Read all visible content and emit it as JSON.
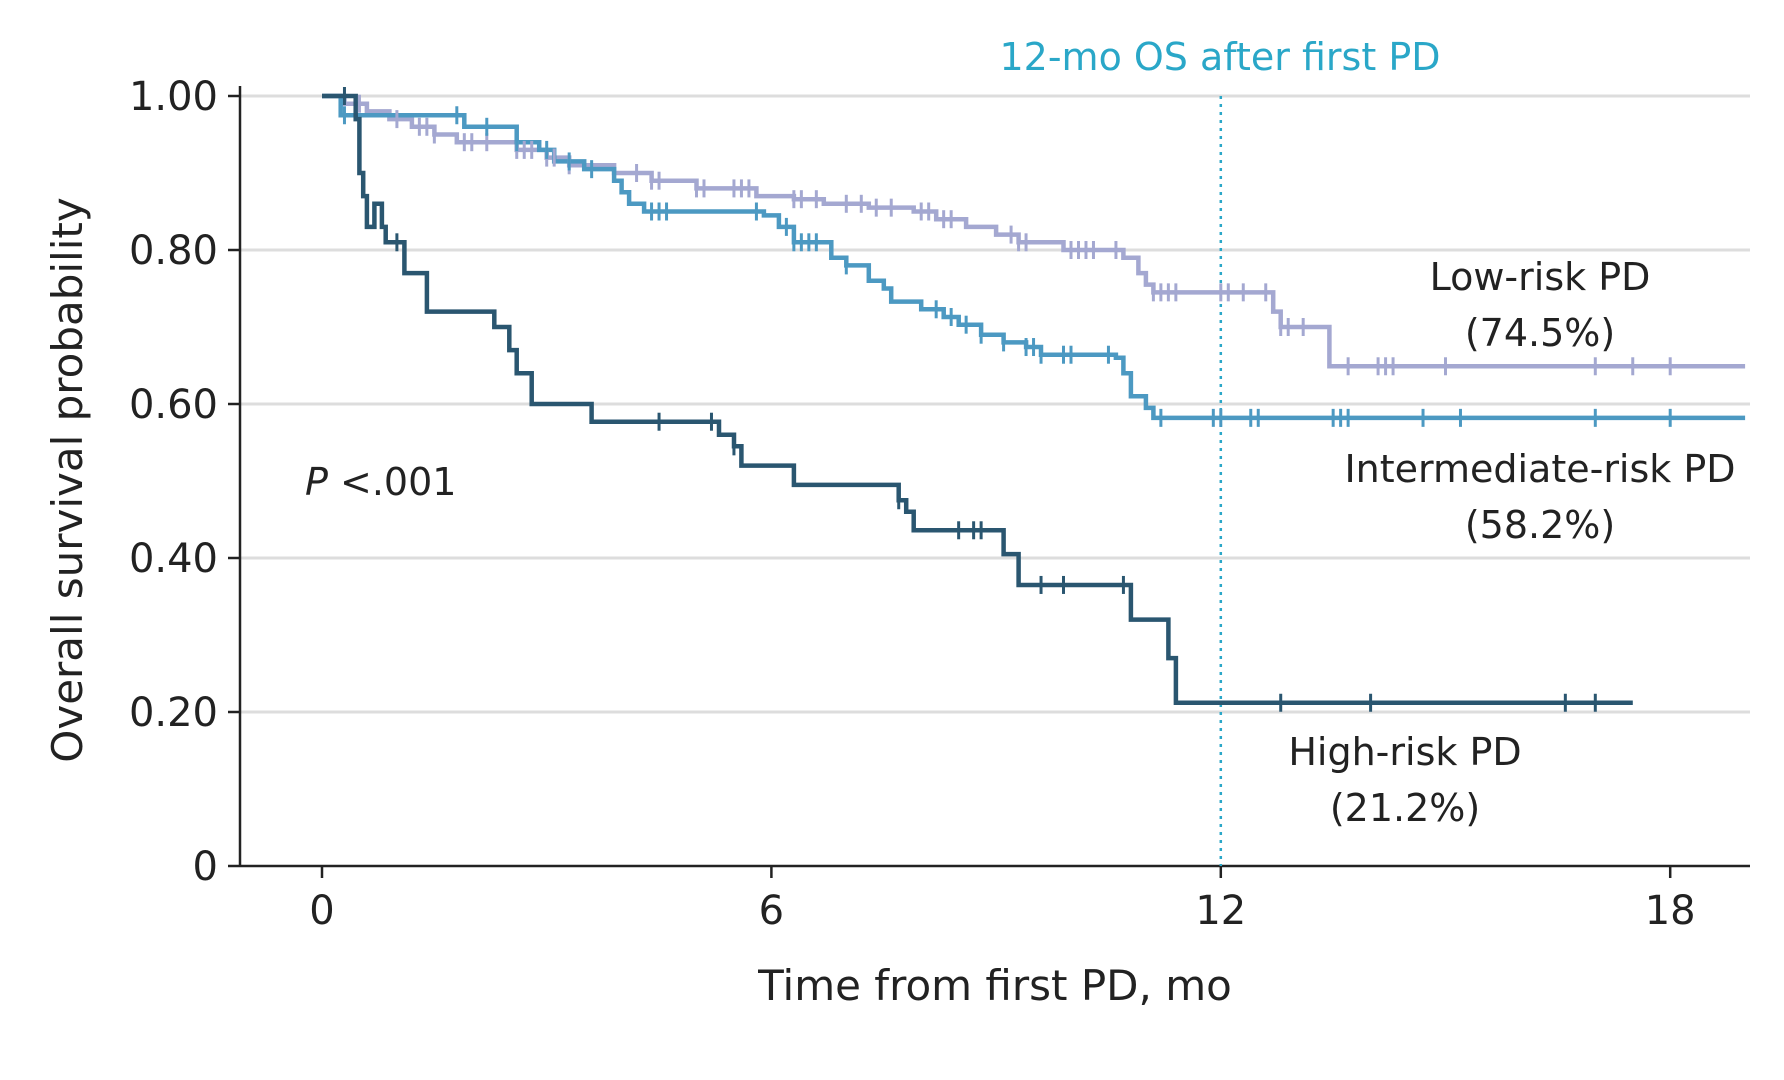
{
  "chart_data": {
    "type": "line",
    "subtype": "kaplan-meier",
    "title": "",
    "xlabel": "Time from first PD, mo",
    "ylabel": "Overall survival probability",
    "xlim": [
      -1.1,
      19
    ],
    "ylim": [
      0,
      1
    ],
    "xticks": [
      {
        "value": 0,
        "label": "0"
      },
      {
        "value": 6,
        "label": "6"
      },
      {
        "value": 12,
        "label": "12"
      },
      {
        "value": 18,
        "label": "18"
      }
    ],
    "yticks": [
      {
        "value": 0,
        "label": "0"
      },
      {
        "value": 0.2,
        "label": "0.20"
      },
      {
        "value": 0.4,
        "label": "0.40"
      },
      {
        "value": 0.6,
        "label": "0.60"
      },
      {
        "value": 0.8,
        "label": "0.80"
      },
      {
        "value": 1.0,
        "label": "1.00"
      }
    ],
    "grid": "horizontal",
    "annotation": {
      "text": "P <.001",
      "italic_prefix": "P"
    },
    "reference_line": {
      "x": 12,
      "label": "12-mo OS after first PD",
      "color": "#2aa7c8",
      "style": "dotted"
    },
    "series": [
      {
        "name": "Low-risk PD",
        "label_lines": [
          "Low-risk PD",
          "(74.5%)"
        ],
        "label_value": "(74.5%)",
        "color": "#a4a8d1",
        "end_x": 19,
        "steps": [
          [
            0,
            1.0
          ],
          [
            0.3,
            0.99
          ],
          [
            0.6,
            0.98
          ],
          [
            0.9,
            0.97
          ],
          [
            1.2,
            0.96
          ],
          [
            1.5,
            0.95
          ],
          [
            1.8,
            0.94
          ],
          [
            2.6,
            0.93
          ],
          [
            3.0,
            0.92
          ],
          [
            3.3,
            0.91
          ],
          [
            3.9,
            0.9
          ],
          [
            4.4,
            0.89
          ],
          [
            5.0,
            0.88
          ],
          [
            5.8,
            0.87
          ],
          [
            6.3,
            0.866
          ],
          [
            6.7,
            0.86
          ],
          [
            7.3,
            0.855
          ],
          [
            7.9,
            0.85
          ],
          [
            8.2,
            0.84
          ],
          [
            8.6,
            0.83
          ],
          [
            9.0,
            0.82
          ],
          [
            9.3,
            0.81
          ],
          [
            9.9,
            0.8
          ],
          [
            10.7,
            0.79
          ],
          [
            10.9,
            0.77
          ],
          [
            11.0,
            0.755
          ],
          [
            11.1,
            0.745
          ],
          [
            12.6,
            0.745
          ],
          [
            12.7,
            0.72
          ],
          [
            12.8,
            0.7
          ],
          [
            13.3,
            0.7
          ],
          [
            13.45,
            0.649
          ]
        ],
        "censor_x": [
          0.5,
          1.0,
          1.3,
          1.4,
          1.5,
          1.9,
          2.0,
          2.2,
          2.6,
          2.7,
          2.8,
          3.0,
          3.1,
          3.3,
          4.2,
          4.4,
          4.5,
          5.0,
          5.1,
          5.5,
          5.6,
          5.7,
          6.3,
          6.4,
          6.6,
          7.0,
          7.2,
          7.4,
          7.6,
          8.0,
          8.1,
          8.3,
          8.4,
          9.2,
          9.3,
          9.4,
          10.0,
          10.1,
          10.2,
          10.3,
          10.6,
          11.1,
          11.2,
          11.3,
          11.4,
          12.0,
          12.1,
          12.3,
          12.6,
          12.8,
          12.9,
          13.1,
          13.7,
          14.1,
          14.2,
          14.3,
          15.0,
          17.0,
          17.5,
          18.0
        ]
      },
      {
        "name": "Intermediate-risk PD",
        "label_lines": [
          "Intermediate-risk PD",
          "(58.2%)"
        ],
        "label_value": "(58.2%)",
        "color": "#4c99c2",
        "end_x": 19,
        "steps": [
          [
            0,
            1.0
          ],
          [
            0.25,
            0.975
          ],
          [
            1.9,
            0.96
          ],
          [
            2.6,
            0.94
          ],
          [
            2.9,
            0.93
          ],
          [
            3.1,
            0.915
          ],
          [
            3.5,
            0.905
          ],
          [
            3.9,
            0.89
          ],
          [
            4.0,
            0.875
          ],
          [
            4.1,
            0.86
          ],
          [
            4.3,
            0.85
          ],
          [
            5.9,
            0.845
          ],
          [
            6.1,
            0.83
          ],
          [
            6.3,
            0.81
          ],
          [
            6.8,
            0.79
          ],
          [
            7.0,
            0.78
          ],
          [
            7.3,
            0.76
          ],
          [
            7.5,
            0.75
          ],
          [
            7.6,
            0.733
          ],
          [
            8.0,
            0.723
          ],
          [
            8.3,
            0.713
          ],
          [
            8.5,
            0.703
          ],
          [
            8.8,
            0.69
          ],
          [
            9.1,
            0.68
          ],
          [
            9.4,
            0.674
          ],
          [
            9.6,
            0.664
          ],
          [
            10.6,
            0.66
          ],
          [
            10.7,
            0.64
          ],
          [
            10.8,
            0.61
          ],
          [
            11.0,
            0.595
          ],
          [
            11.1,
            0.582
          ]
        ],
        "censor_x": [
          0.3,
          1.8,
          2.2,
          2.6,
          3.0,
          3.3,
          3.6,
          4.4,
          4.5,
          4.6,
          5.8,
          6.2,
          6.3,
          6.4,
          6.5,
          6.6,
          7.0,
          8.2,
          8.4,
          8.6,
          8.8,
          9.1,
          9.4,
          9.5,
          9.6,
          9.9,
          10.0,
          10.5,
          11.2,
          11.9,
          12.0,
          12.4,
          12.5,
          13.5,
          13.6,
          13.7,
          14.7,
          15.2,
          17.0,
          18.0
        ]
      },
      {
        "name": "High-risk PD",
        "label_lines": [
          "High-risk PD",
          "(21.2%)"
        ],
        "label_value": "(21.2%)",
        "color": "#2a5670",
        "end_x": 17.5,
        "steps": [
          [
            0,
            1.0
          ],
          [
            0.45,
            0.97
          ],
          [
            0.5,
            0.9
          ],
          [
            0.55,
            0.87
          ],
          [
            0.6,
            0.83
          ],
          [
            0.7,
            0.86
          ],
          [
            0.75,
            0.86
          ],
          [
            0.8,
            0.83
          ],
          [
            0.85,
            0.81
          ],
          [
            1.05,
            0.81
          ],
          [
            1.1,
            0.77
          ],
          [
            1.4,
            0.72
          ],
          [
            1.45,
            0.72
          ],
          [
            2.3,
            0.7
          ],
          [
            2.5,
            0.67
          ],
          [
            2.6,
            0.64
          ],
          [
            2.8,
            0.6
          ],
          [
            3.6,
            0.577
          ],
          [
            5.3,
            0.56
          ],
          [
            5.5,
            0.545
          ],
          [
            5.6,
            0.52
          ],
          [
            6.3,
            0.495
          ],
          [
            7.7,
            0.475
          ],
          [
            7.8,
            0.46
          ],
          [
            7.9,
            0.436
          ],
          [
            9.1,
            0.405
          ],
          [
            9.3,
            0.365
          ],
          [
            10.8,
            0.32
          ],
          [
            11.3,
            0.27
          ],
          [
            11.4,
            0.212
          ]
        ],
        "censor_x": [
          0.3,
          1.0,
          4.5,
          5.2,
          5.5,
          7.7,
          8.5,
          8.7,
          8.8,
          9.6,
          9.9,
          10.7,
          12.8,
          14.0,
          16.6,
          17.0
        ]
      }
    ]
  }
}
